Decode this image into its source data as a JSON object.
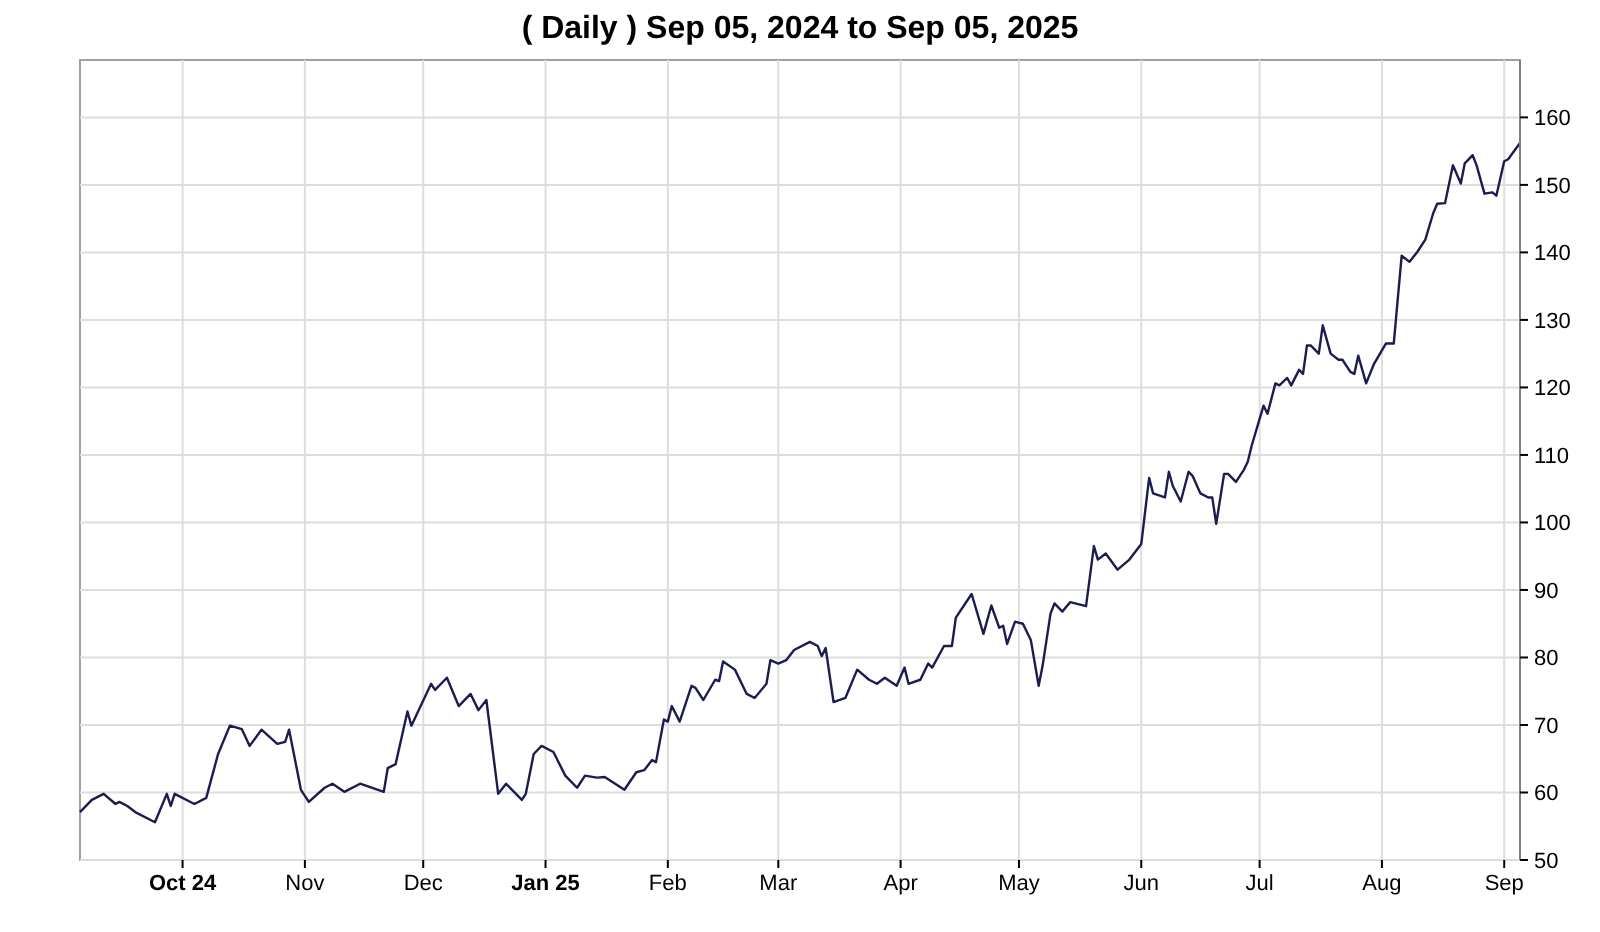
{
  "chart_data": {
    "type": "line",
    "title": "( Daily ) Sep 05, 2024 to Sep 05, 2025",
    "xlim": [
      "2024-09-05",
      "2025-09-05"
    ],
    "xticks": [
      {
        "value": "2024-10-01",
        "label": "Oct 24"
      },
      {
        "value": "2024-11-01",
        "label": "Nov"
      },
      {
        "value": "2024-12-01",
        "label": "Dec"
      },
      {
        "value": "2025-01-01",
        "label": "Jan 25"
      },
      {
        "value": "2025-02-01",
        "label": "Feb"
      },
      {
        "value": "2025-03-01",
        "label": "Mar"
      },
      {
        "value": "2025-04-01",
        "label": "Apr"
      },
      {
        "value": "2025-05-01",
        "label": "May"
      },
      {
        "value": "2025-06-01",
        "label": "Jun"
      },
      {
        "value": "2025-07-01",
        "label": "Jul"
      },
      {
        "value": "2025-08-01",
        "label": "Aug"
      },
      {
        "value": "2025-09-01",
        "label": "Sep"
      }
    ],
    "ylim": [
      50,
      168.5
    ],
    "yticks": [
      50,
      60,
      70,
      80,
      90,
      100,
      110,
      120,
      130,
      140,
      150,
      160
    ],
    "grid": true,
    "marker": "none",
    "line_style": "solid",
    "x": [
      "2024-09-05",
      "2024-09-08",
      "2024-09-11",
      "2024-09-14",
      "2024-09-15",
      "2024-09-17",
      "2024-09-19",
      "2024-09-24",
      "2024-09-27",
      "2024-09-28",
      "2024-09-29",
      "2024-10-04",
      "2024-10-07",
      "2024-10-10",
      "2024-10-13",
      "2024-10-16",
      "2024-10-18",
      "2024-10-21",
      "2024-10-25",
      "2024-10-27",
      "2024-10-28",
      "2024-10-31",
      "2024-11-02",
      "2024-11-06",
      "2024-11-08",
      "2024-11-11",
      "2024-11-15",
      "2024-11-21",
      "2024-11-22",
      "2024-11-24",
      "2024-11-27",
      "2024-11-28",
      "2024-12-03",
      "2024-12-04",
      "2024-12-07",
      "2024-12-10",
      "2024-12-13",
      "2024-12-15",
      "2024-12-17",
      "2024-12-20",
      "2024-12-22",
      "2024-12-26",
      "2024-12-27",
      "2024-12-29",
      "2024-12-31",
      "2025-01-03",
      "2025-01-06",
      "2025-01-09",
      "2025-01-11",
      "2025-01-14",
      "2025-01-16",
      "2025-01-21",
      "2025-01-24",
      "2025-01-26",
      "2025-01-28",
      "2025-01-29",
      "2025-01-31",
      "2025-02-01",
      "2025-02-02",
      "2025-02-04",
      "2025-02-07",
      "2025-02-08",
      "2025-02-10",
      "2025-02-13",
      "2025-02-14",
      "2025-02-15",
      "2025-02-18",
      "2025-02-21",
      "2025-02-23",
      "2025-02-26",
      "2025-02-27",
      "2025-03-01",
      "2025-03-03",
      "2025-03-05",
      "2025-03-09",
      "2025-03-11",
      "2025-03-12",
      "2025-03-13",
      "2025-03-15",
      "2025-03-18",
      "2025-03-21",
      "2025-03-24",
      "2025-03-26",
      "2025-03-28",
      "2025-03-31",
      "2025-04-02",
      "2025-04-03",
      "2025-04-06",
      "2025-04-08",
      "2025-04-09",
      "2025-04-12",
      "2025-04-14",
      "2025-04-15",
      "2025-04-19",
      "2025-04-22",
      "2025-04-24",
      "2025-04-26",
      "2025-04-27",
      "2025-04-28",
      "2025-04-30",
      "2025-05-02",
      "2025-05-04",
      "2025-05-06",
      "2025-05-07",
      "2025-05-09",
      "2025-05-10",
      "2025-05-12",
      "2025-05-14",
      "2025-05-18",
      "2025-05-20",
      "2025-05-21",
      "2025-05-23",
      "2025-05-26",
      "2025-05-29",
      "2025-06-01",
      "2025-06-03",
      "2025-06-04",
      "2025-06-07",
      "2025-06-08",
      "2025-06-09",
      "2025-06-11",
      "2025-06-13",
      "2025-06-14",
      "2025-06-16",
      "2025-06-18",
      "2025-06-19",
      "2025-06-20",
      "2025-06-22",
      "2025-06-23",
      "2025-06-25",
      "2025-06-27",
      "2025-06-28",
      "2025-06-29",
      "2025-07-02",
      "2025-07-03",
      "2025-07-05",
      "2025-07-06",
      "2025-07-08",
      "2025-07-09",
      "2025-07-11",
      "2025-07-12",
      "2025-07-13",
      "2025-07-14",
      "2025-07-16",
      "2025-07-17",
      "2025-07-19",
      "2025-07-21",
      "2025-07-22",
      "2025-07-24",
      "2025-07-25",
      "2025-07-26",
      "2025-07-28",
      "2025-07-30",
      "2025-08-02",
      "2025-08-04",
      "2025-08-06",
      "2025-08-08",
      "2025-08-10",
      "2025-08-12",
      "2025-08-14",
      "2025-08-15",
      "2025-08-17",
      "2025-08-19",
      "2025-08-21",
      "2025-08-22",
      "2025-08-24",
      "2025-08-25",
      "2025-08-27",
      "2025-08-29",
      "2025-08-30",
      "2025-09-01",
      "2025-09-02",
      "2025-09-05"
    ],
    "series": [
      {
        "color": "#1c1c50",
        "values": [
          57.1,
          58.9,
          59.8,
          58.3,
          58.6,
          58.0,
          57.1,
          55.6,
          59.8,
          58.0,
          59.8,
          58.3,
          59.2,
          65.7,
          69.9,
          69.4,
          66.9,
          69.3,
          67.2,
          67.5,
          69.3,
          60.4,
          58.6,
          60.7,
          61.3,
          60.1,
          61.3,
          60.1,
          63.6,
          64.2,
          72.0,
          69.9,
          76.1,
          75.2,
          77.0,
          72.8,
          74.6,
          72.2,
          73.7,
          59.8,
          61.3,
          58.9,
          59.8,
          65.7,
          66.9,
          66.0,
          62.5,
          60.7,
          62.5,
          62.2,
          62.3,
          60.4,
          63.0,
          63.3,
          64.8,
          64.5,
          70.8,
          70.5,
          72.8,
          70.5,
          75.8,
          75.5,
          73.7,
          76.7,
          76.5,
          79.4,
          78.2,
          74.6,
          74.0,
          76.1,
          79.6,
          79.1,
          79.6,
          81.1,
          82.3,
          81.7,
          80.2,
          81.4,
          73.4,
          74.0,
          78.2,
          76.7,
          76.1,
          77.0,
          75.8,
          78.5,
          76.1,
          76.7,
          79.1,
          78.5,
          81.7,
          81.7,
          85.9,
          89.4,
          83.5,
          87.7,
          84.4,
          84.7,
          82.0,
          85.3,
          85.0,
          82.6,
          75.8,
          78.8,
          86.5,
          88.0,
          86.8,
          88.2,
          87.6,
          96.5,
          94.5,
          95.4,
          93.0,
          94.5,
          96.8,
          106.6,
          104.3,
          103.7,
          107.5,
          105.4,
          103.1,
          107.5,
          106.9,
          104.3,
          103.7,
          103.7,
          99.8,
          107.2,
          107.2,
          106.0,
          107.8,
          109.0,
          111.4,
          117.3,
          116.1,
          120.6,
          120.3,
          121.4,
          120.3,
          122.6,
          122.0,
          126.2,
          126.2,
          125.0,
          129.2,
          125.0,
          124.1,
          124.1,
          122.3,
          122.0,
          124.7,
          120.6,
          123.5,
          126.5,
          126.5,
          139.5,
          138.6,
          140.1,
          141.9,
          145.8,
          147.2,
          147.3,
          152.9,
          150.2,
          153.2,
          154.4,
          152.9,
          148.7,
          148.9,
          148.4,
          153.5,
          153.8,
          156.2
        ]
      }
    ]
  }
}
